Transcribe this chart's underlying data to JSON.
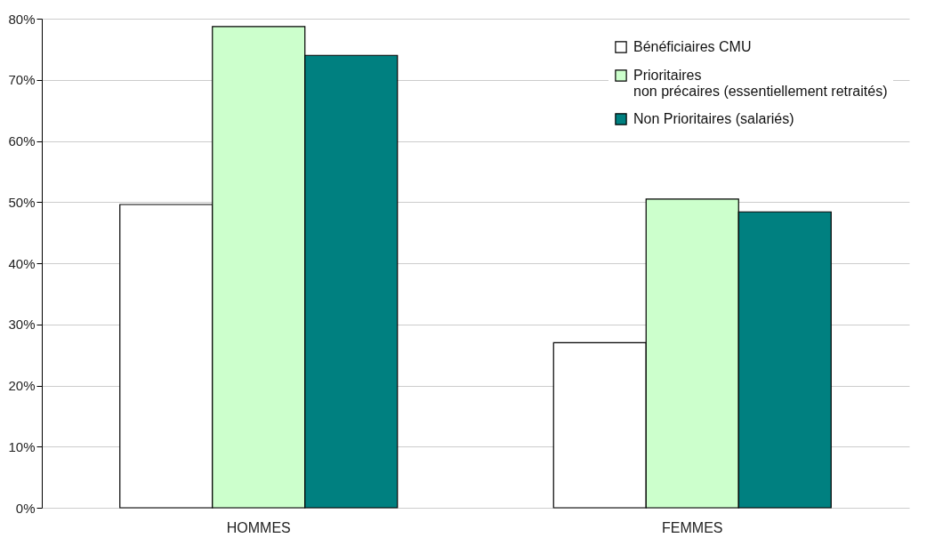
{
  "chart_data": {
    "type": "bar",
    "categories": [
      "HOMMES",
      "FEMMES"
    ],
    "series": [
      {
        "name": "Bénéficiaires CMU",
        "color": "#ffffff",
        "values": [
          49.6,
          27.0
        ]
      },
      {
        "name": "Prioritaires\nnon précaires (essentiellement retraités)",
        "color": "#ccffcc",
        "values": [
          78.7,
          50.5
        ]
      },
      {
        "name": "Non Prioritaires (salariés)",
        "color": "#008080",
        "values": [
          74.0,
          48.4
        ]
      }
    ],
    "ylim": [
      0,
      80
    ],
    "yticks": [
      {
        "value": 0,
        "label": "0%"
      },
      {
        "value": 10,
        "label": "10%"
      },
      {
        "value": 20,
        "label": "20%"
      },
      {
        "value": 30,
        "label": "30%"
      },
      {
        "value": 40,
        "label": "40%"
      },
      {
        "value": 50,
        "label": "50%"
      },
      {
        "value": 60,
        "label": "60%"
      },
      {
        "value": 70,
        "label": "70%"
      },
      {
        "value": 80,
        "label": "80%"
      }
    ],
    "grid": "y",
    "legend": "top right"
  }
}
